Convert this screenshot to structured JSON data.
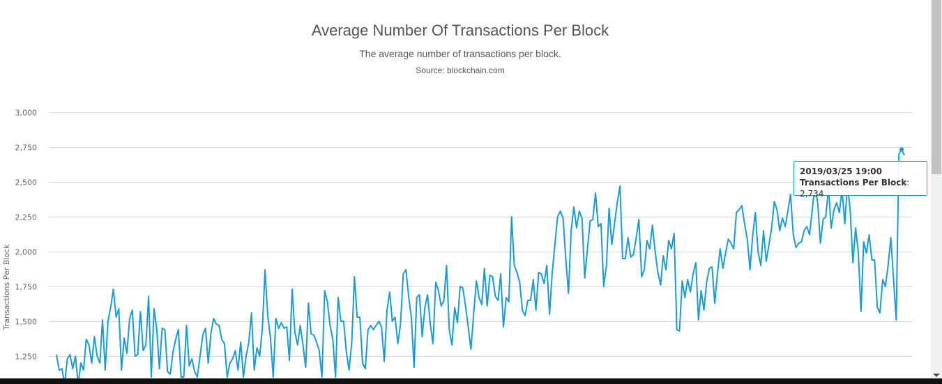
{
  "header": {
    "title": "Average Number Of Transactions Per Block",
    "subtitle": "The average number of transactions per block.",
    "source": "Source: blockchain.com"
  },
  "tooltip": {
    "date": "2019/03/25 19:00",
    "series_label": "Transactions Per Block",
    "value_text": "2,734"
  },
  "colors": {
    "line": "#1a9bd7",
    "grid": "#d8d8d8",
    "text": "#555555"
  },
  "chart_data": {
    "type": "line",
    "title": "Average Number Of Transactions Per Block",
    "subtitle": "The average number of transactions per block.",
    "ylabel": "Transactions Per Block",
    "xlabel": "",
    "ylim": [
      1000,
      3000
    ],
    "yticks": [
      1250,
      1500,
      1750,
      2000,
      2250,
      2500,
      2750,
      3000
    ],
    "ytick_labels": [
      "1,250",
      "1,500",
      "1,750",
      "2,000",
      "2,250",
      "2,500",
      "2,750",
      "3,000"
    ],
    "grid": true,
    "legend": "none",
    "series": [
      {
        "name": "Transactions Per Block",
        "last_x": "2019/03/25 19:00",
        "values": [
          1260,
          1150,
          1160,
          1050,
          1230,
          1260,
          1160,
          1250,
          1050,
          1200,
          1150,
          1370,
          1330,
          1200,
          1390,
          1250,
          1200,
          1510,
          1150,
          1500,
          1600,
          1730,
          1530,
          1590,
          1150,
          1380,
          1270,
          1520,
          1580,
          1250,
          1260,
          1570,
          1290,
          1330,
          1680,
          1100,
          1590,
          1450,
          1160,
          1450,
          1440,
          1140,
          1120,
          1280,
          1370,
          1440,
          1100,
          1100,
          1470,
          1180,
          1230,
          1140,
          1100,
          1250,
          1400,
          1450,
          1200,
          1410,
          1520,
          1480,
          1470,
          1370,
          1340,
          1100,
          1200,
          1230,
          1290,
          1150,
          1350,
          1100,
          1250,
          1350,
          1560,
          1150,
          1310,
          1250,
          1450,
          1870,
          1540,
          1380,
          1100,
          1520,
          1450,
          1490,
          1450,
          1460,
          1220,
          1730,
          1420,
          1330,
          1470,
          1330,
          1170,
          1630,
          1410,
          1400,
          1350,
          1290,
          1100,
          1720,
          1640,
          1470,
          1370,
          1100,
          1670,
          1500,
          1500,
          1280,
          1150,
          1350,
          1820,
          1530,
          1530,
          1200,
          1160,
          1440,
          1470,
          1440,
          1470,
          1500,
          1460,
          1210,
          1580,
          1710,
          1500,
          1530,
          1340,
          1480,
          1840,
          1870,
          1680,
          1530,
          1170,
          1670,
          1690,
          1390,
          1600,
          1690,
          1480,
          1340,
          1780,
          1720,
          1610,
          1650,
          1900,
          1440,
          1330,
          1600,
          1490,
          1750,
          1740,
          1610,
          1460,
          1300,
          1550,
          1790,
          1670,
          1620,
          1880,
          1610,
          1830,
          1820,
          1680,
          1650,
          1840,
          1460,
          1670,
          1640,
          2250,
          1900,
          1850,
          1780,
          1580,
          1540,
          1650,
          1650,
          1800,
          1580,
          1850,
          1840,
          1770,
          1900,
          1550,
          1850,
          2050,
          2250,
          2290,
          2240,
          1950,
          1700,
          2150,
          2320,
          2170,
          2290,
          2240,
          1810,
          2020,
          2220,
          2230,
          2420,
          2180,
          2200,
          1750,
          1900,
          2310,
          2050,
          2200,
          2350,
          2470,
          1950,
          1950,
          2100,
          1960,
          1980,
          2100,
          2230,
          1820,
          1870,
          2080,
          2020,
          2190,
          2000,
          1850,
          1760,
          1970,
          1870,
          2080,
          2020,
          2130,
          1440,
          1430,
          1790,
          1670,
          1800,
          1710,
          1840,
          1920,
          1510,
          1720,
          1580,
          1780,
          1880,
          1890,
          1630,
          1840,
          2020,
          1880,
          1990,
          2090,
          2060,
          2020,
          2280,
          2300,
          2330,
          2200,
          2090,
          1870,
          2110,
          2280,
          2000,
          1900,
          2150,
          1930,
          2050,
          2170,
          2360,
          2300,
          2150,
          2240,
          2180,
          2290,
          2410,
          2120,
          2030,
          2060,
          2070,
          2150,
          2180,
          2120,
          2300,
          2480,
          2350,
          2060,
          2230,
          2250,
          2460,
          2170,
          2300,
          2350,
          2280,
          2450,
          2200,
          2480,
          2300,
          1920,
          2170,
          1990,
          1570,
          2070,
          1990,
          2120,
          1940,
          1940,
          1600,
          1560,
          1800,
          1750,
          1900,
          2100,
          1800,
          1510,
          2700,
          2734,
          2690
        ]
      }
    ]
  }
}
